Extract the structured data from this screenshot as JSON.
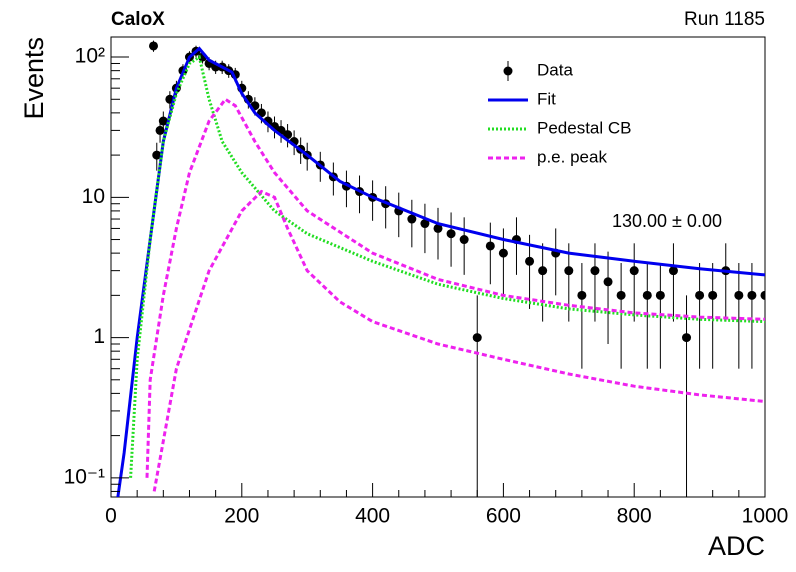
{
  "chart_data": {
    "type": "scatter",
    "title": "CaloX",
    "subtitle": "Run 1185",
    "x_label": "ADC",
    "y_label": "Events",
    "log_y": true,
    "legend": "top-right",
    "annotations": [
      "130.00 ± 0.00"
    ],
    "xlim": [
      0,
      1000
    ],
    "xticks": [
      0,
      200,
      400,
      600,
      800,
      1000
    ],
    "ylim": [
      0.073,
      139
    ],
    "yticks": [
      {
        "value": 100,
        "label": "10²"
      },
      10,
      1,
      {
        "value": 0.1,
        "label": "10⁻¹"
      }
    ],
    "series": [
      {
        "name": "Data",
        "color": "#000000",
        "style": "points",
        "x": [
          65,
          70,
          75,
          80,
          90,
          100,
          110,
          120,
          130,
          140,
          150,
          160,
          170,
          180,
          190,
          200,
          210,
          220,
          230,
          240,
          250,
          260,
          270,
          280,
          290,
          300,
          320,
          340,
          360,
          380,
          400,
          420,
          440,
          460,
          480,
          500,
          520,
          540,
          560,
          580,
          600,
          620,
          640,
          660,
          680,
          700,
          720,
          740,
          760,
          780,
          800,
          820,
          840,
          860,
          880,
          900,
          920,
          940,
          960,
          980,
          1000
        ],
        "values": [
          120,
          20,
          30,
          35,
          50,
          60,
          80,
          100,
          110,
          100,
          90,
          85,
          85,
          80,
          75,
          60,
          50,
          45,
          40,
          35,
          32,
          30,
          28,
          25,
          22,
          20,
          17,
          14,
          12,
          11,
          10,
          9,
          8,
          7,
          6.5,
          6,
          5.5,
          5,
          1,
          4.5,
          4,
          5,
          3.5,
          3,
          4,
          3,
          2,
          3,
          2.5,
          2,
          3,
          2,
          2,
          3,
          1,
          2,
          2,
          3,
          2,
          2,
          2
        ],
        "errors": [
          11,
          4.5,
          5.5,
          5.9,
          7.1,
          7.7,
          8.9,
          10,
          10.5,
          10,
          9.5,
          9.2,
          9.2,
          8.9,
          8.7,
          7.7,
          7.1,
          6.7,
          6.3,
          5.9,
          5.7,
          5.5,
          5.3,
          5,
          4.7,
          4.5,
          4.1,
          3.7,
          3.5,
          3.3,
          3.2,
          3,
          2.8,
          2.6,
          2.5,
          2.4,
          2.3,
          2.2,
          1,
          2.1,
          2,
          2.2,
          1.9,
          1.7,
          2,
          1.7,
          1.4,
          1.7,
          1.6,
          1.4,
          1.7,
          1.4,
          1.4,
          1.7,
          1,
          1.4,
          1.4,
          1.7,
          1.4,
          1.4,
          1.4
        ]
      },
      {
        "name": "Fit",
        "color": "#0000ee",
        "style": "solid",
        "x": [
          10,
          20,
          40,
          60,
          80,
          100,
          120,
          135,
          150,
          170,
          185,
          200,
          220,
          250,
          300,
          350,
          400,
          500,
          600,
          700,
          800,
          900,
          1000
        ],
        "values": [
          0.07,
          0.15,
          1,
          5,
          25,
          60,
          100,
          115,
          95,
          85,
          78,
          55,
          40,
          30,
          20,
          13,
          10,
          6.5,
          5,
          4,
          3.5,
          3.1,
          2.8
        ]
      },
      {
        "name": "Pedestal CB",
        "color": "#22dd22",
        "style": "dotted",
        "x": [
          30,
          40,
          60,
          80,
          100,
          120,
          135,
          150,
          170,
          200,
          250,
          300,
          400,
          500,
          600,
          700,
          800,
          900,
          1000
        ],
        "values": [
          0.1,
          0.7,
          5,
          25,
          55,
          90,
          100,
          50,
          25,
          15,
          8,
          5.5,
          3.5,
          2.4,
          1.9,
          1.6,
          1.45,
          1.35,
          1.3
        ]
      },
      {
        "name": "p.e. peak",
        "color": "#ee22ee",
        "style": "dashed",
        "x": [
          55,
          60,
          80,
          100,
          120,
          150,
          175,
          190,
          220,
          250,
          300,
          400,
          500,
          600,
          700,
          800,
          900,
          1000,
          null,
          66,
          100,
          150,
          200,
          230,
          250,
          270,
          300,
          350,
          400,
          500,
          600,
          700,
          800,
          900,
          1000
        ],
        "values": [
          0.1,
          0.5,
          2,
          6,
          15,
          35,
          50,
          45,
          25,
          15,
          8,
          4,
          2.6,
          2,
          1.7,
          1.5,
          1.4,
          1.35,
          null,
          0.08,
          0.6,
          3,
          8,
          11,
          10,
          6,
          3,
          1.8,
          1.3,
          0.9,
          0.7,
          0.55,
          0.45,
          0.39,
          0.35
        ]
      }
    ]
  }
}
